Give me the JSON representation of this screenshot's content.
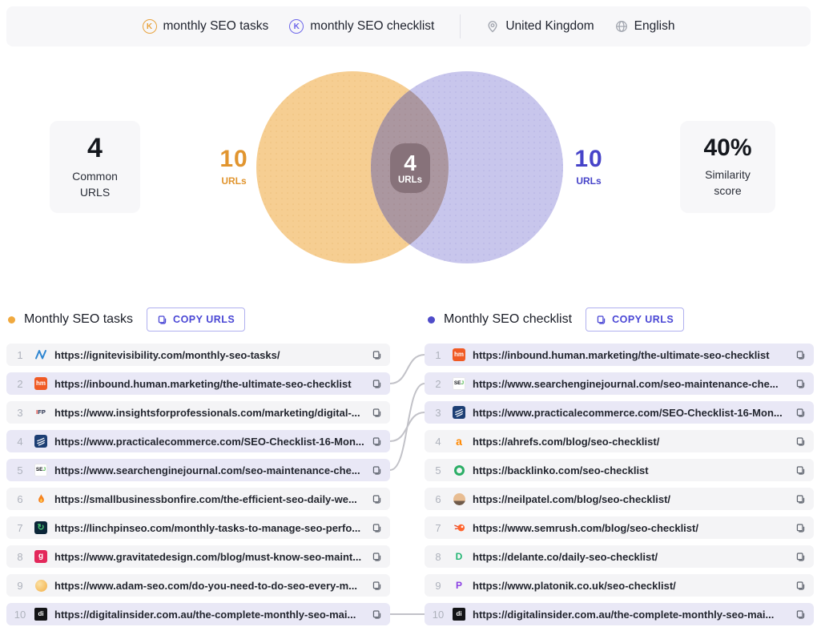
{
  "header": {
    "keywords": [
      {
        "label": "monthly SEO tasks",
        "icon": "keyword-k-icon",
        "color": "#e8a23c"
      },
      {
        "label": "monthly SEO checklist",
        "icon": "keyword-k-icon",
        "color": "#6c66ea"
      }
    ],
    "location": {
      "label": "United Kingdom",
      "icon": "location-pin-icon"
    },
    "language": {
      "label": "English",
      "icon": "globe-icon"
    }
  },
  "stats": {
    "common": {
      "value": "4",
      "label": "Common URLS"
    },
    "similarity": {
      "value": "40%",
      "label": "Similarity score"
    }
  },
  "venn": {
    "left": {
      "count": "10",
      "unit": "URLs",
      "color": "#e1952f",
      "circle_color": "#f6ce92"
    },
    "right": {
      "count": "10",
      "unit": "URLs",
      "color": "#4744c9",
      "circle_color": "#c8c6ec"
    },
    "overlap": {
      "count": "4",
      "unit": "URLs",
      "badge_color": "#857079",
      "lens_color": "#ab97a0"
    }
  },
  "lists": {
    "left": {
      "title": "Monthly SEO tasks",
      "copy_button": "COPY URLS",
      "rows": [
        {
          "num": "1",
          "url": "https://ignitevisibility.com/monthly-seo-tasks/",
          "icon": "ignitevisibility-favicon",
          "common": false
        },
        {
          "num": "2",
          "url": "https://inbound.human.marketing/the-ultimate-seo-checklist",
          "icon": "human-marketing-favicon",
          "common": true
        },
        {
          "num": "3",
          "url": "https://www.insightsforprofessionals.com/marketing/digital-...",
          "icon": "insights-for-professionals-favicon",
          "common": false
        },
        {
          "num": "4",
          "url": "https://www.practicalecommerce.com/SEO-Checklist-16-Mon...",
          "icon": "practical-ecommerce-favicon",
          "common": true
        },
        {
          "num": "5",
          "url": "https://www.searchenginejournal.com/seo-maintenance-che...",
          "icon": "search-engine-journal-favicon",
          "common": true
        },
        {
          "num": "6",
          "url": "https://smallbusinessbonfire.com/the-efficient-seo-daily-we...",
          "icon": "small-business-bonfire-favicon",
          "common": false
        },
        {
          "num": "7",
          "url": "https://linchpinseo.com/monthly-tasks-to-manage-seo-perfo...",
          "icon": "linchpin-seo-favicon",
          "common": false
        },
        {
          "num": "8",
          "url": "https://www.gravitatedesign.com/blog/must-know-seo-maint...",
          "icon": "gravitate-design-favicon",
          "common": false
        },
        {
          "num": "9",
          "url": "https://www.adam-seo.com/do-you-need-to-do-seo-every-m...",
          "icon": "adam-seo-favicon",
          "common": false
        },
        {
          "num": "10",
          "url": "https://digitalinsider.com.au/the-complete-monthly-seo-mai...",
          "icon": "digital-insider-favicon",
          "common": true
        }
      ]
    },
    "right": {
      "title": "Monthly SEO checklist",
      "copy_button": "COPY URLS",
      "rows": [
        {
          "num": "1",
          "url": "https://inbound.human.marketing/the-ultimate-seo-checklist",
          "icon": "human-marketing-favicon",
          "common": true
        },
        {
          "num": "2",
          "url": "https://www.searchenginejournal.com/seo-maintenance-che...",
          "icon": "search-engine-journal-favicon",
          "common": true
        },
        {
          "num": "3",
          "url": "https://www.practicalecommerce.com/SEO-Checklist-16-Mon...",
          "icon": "practical-ecommerce-favicon",
          "common": true
        },
        {
          "num": "4",
          "url": "https://ahrefs.com/blog/seo-checklist/",
          "icon": "ahrefs-favicon",
          "common": false
        },
        {
          "num": "5",
          "url": "https://backlinko.com/seo-checklist",
          "icon": "backlinko-favicon",
          "common": false
        },
        {
          "num": "6",
          "url": "https://neilpatel.com/blog/seo-checklist/",
          "icon": "neil-patel-favicon",
          "common": false
        },
        {
          "num": "7",
          "url": "https://www.semrush.com/blog/seo-checklist/",
          "icon": "semrush-favicon",
          "common": false
        },
        {
          "num": "8",
          "url": "https://delante.co/daily-seo-checklist/",
          "icon": "delante-favicon",
          "common": false
        },
        {
          "num": "9",
          "url": "https://www.platonik.co.uk/seo-checklist/",
          "icon": "platonik-favicon",
          "common": false
        },
        {
          "num": "10",
          "url": "https://digitalinsider.com.au/the-complete-monthly-seo-mai...",
          "icon": "digital-insider-favicon",
          "common": true
        }
      ]
    }
  },
  "connectors": [
    {
      "from": 2,
      "to": 1
    },
    {
      "from": 4,
      "to": 3
    },
    {
      "from": 5,
      "to": 2
    },
    {
      "from": 10,
      "to": 10
    }
  ]
}
